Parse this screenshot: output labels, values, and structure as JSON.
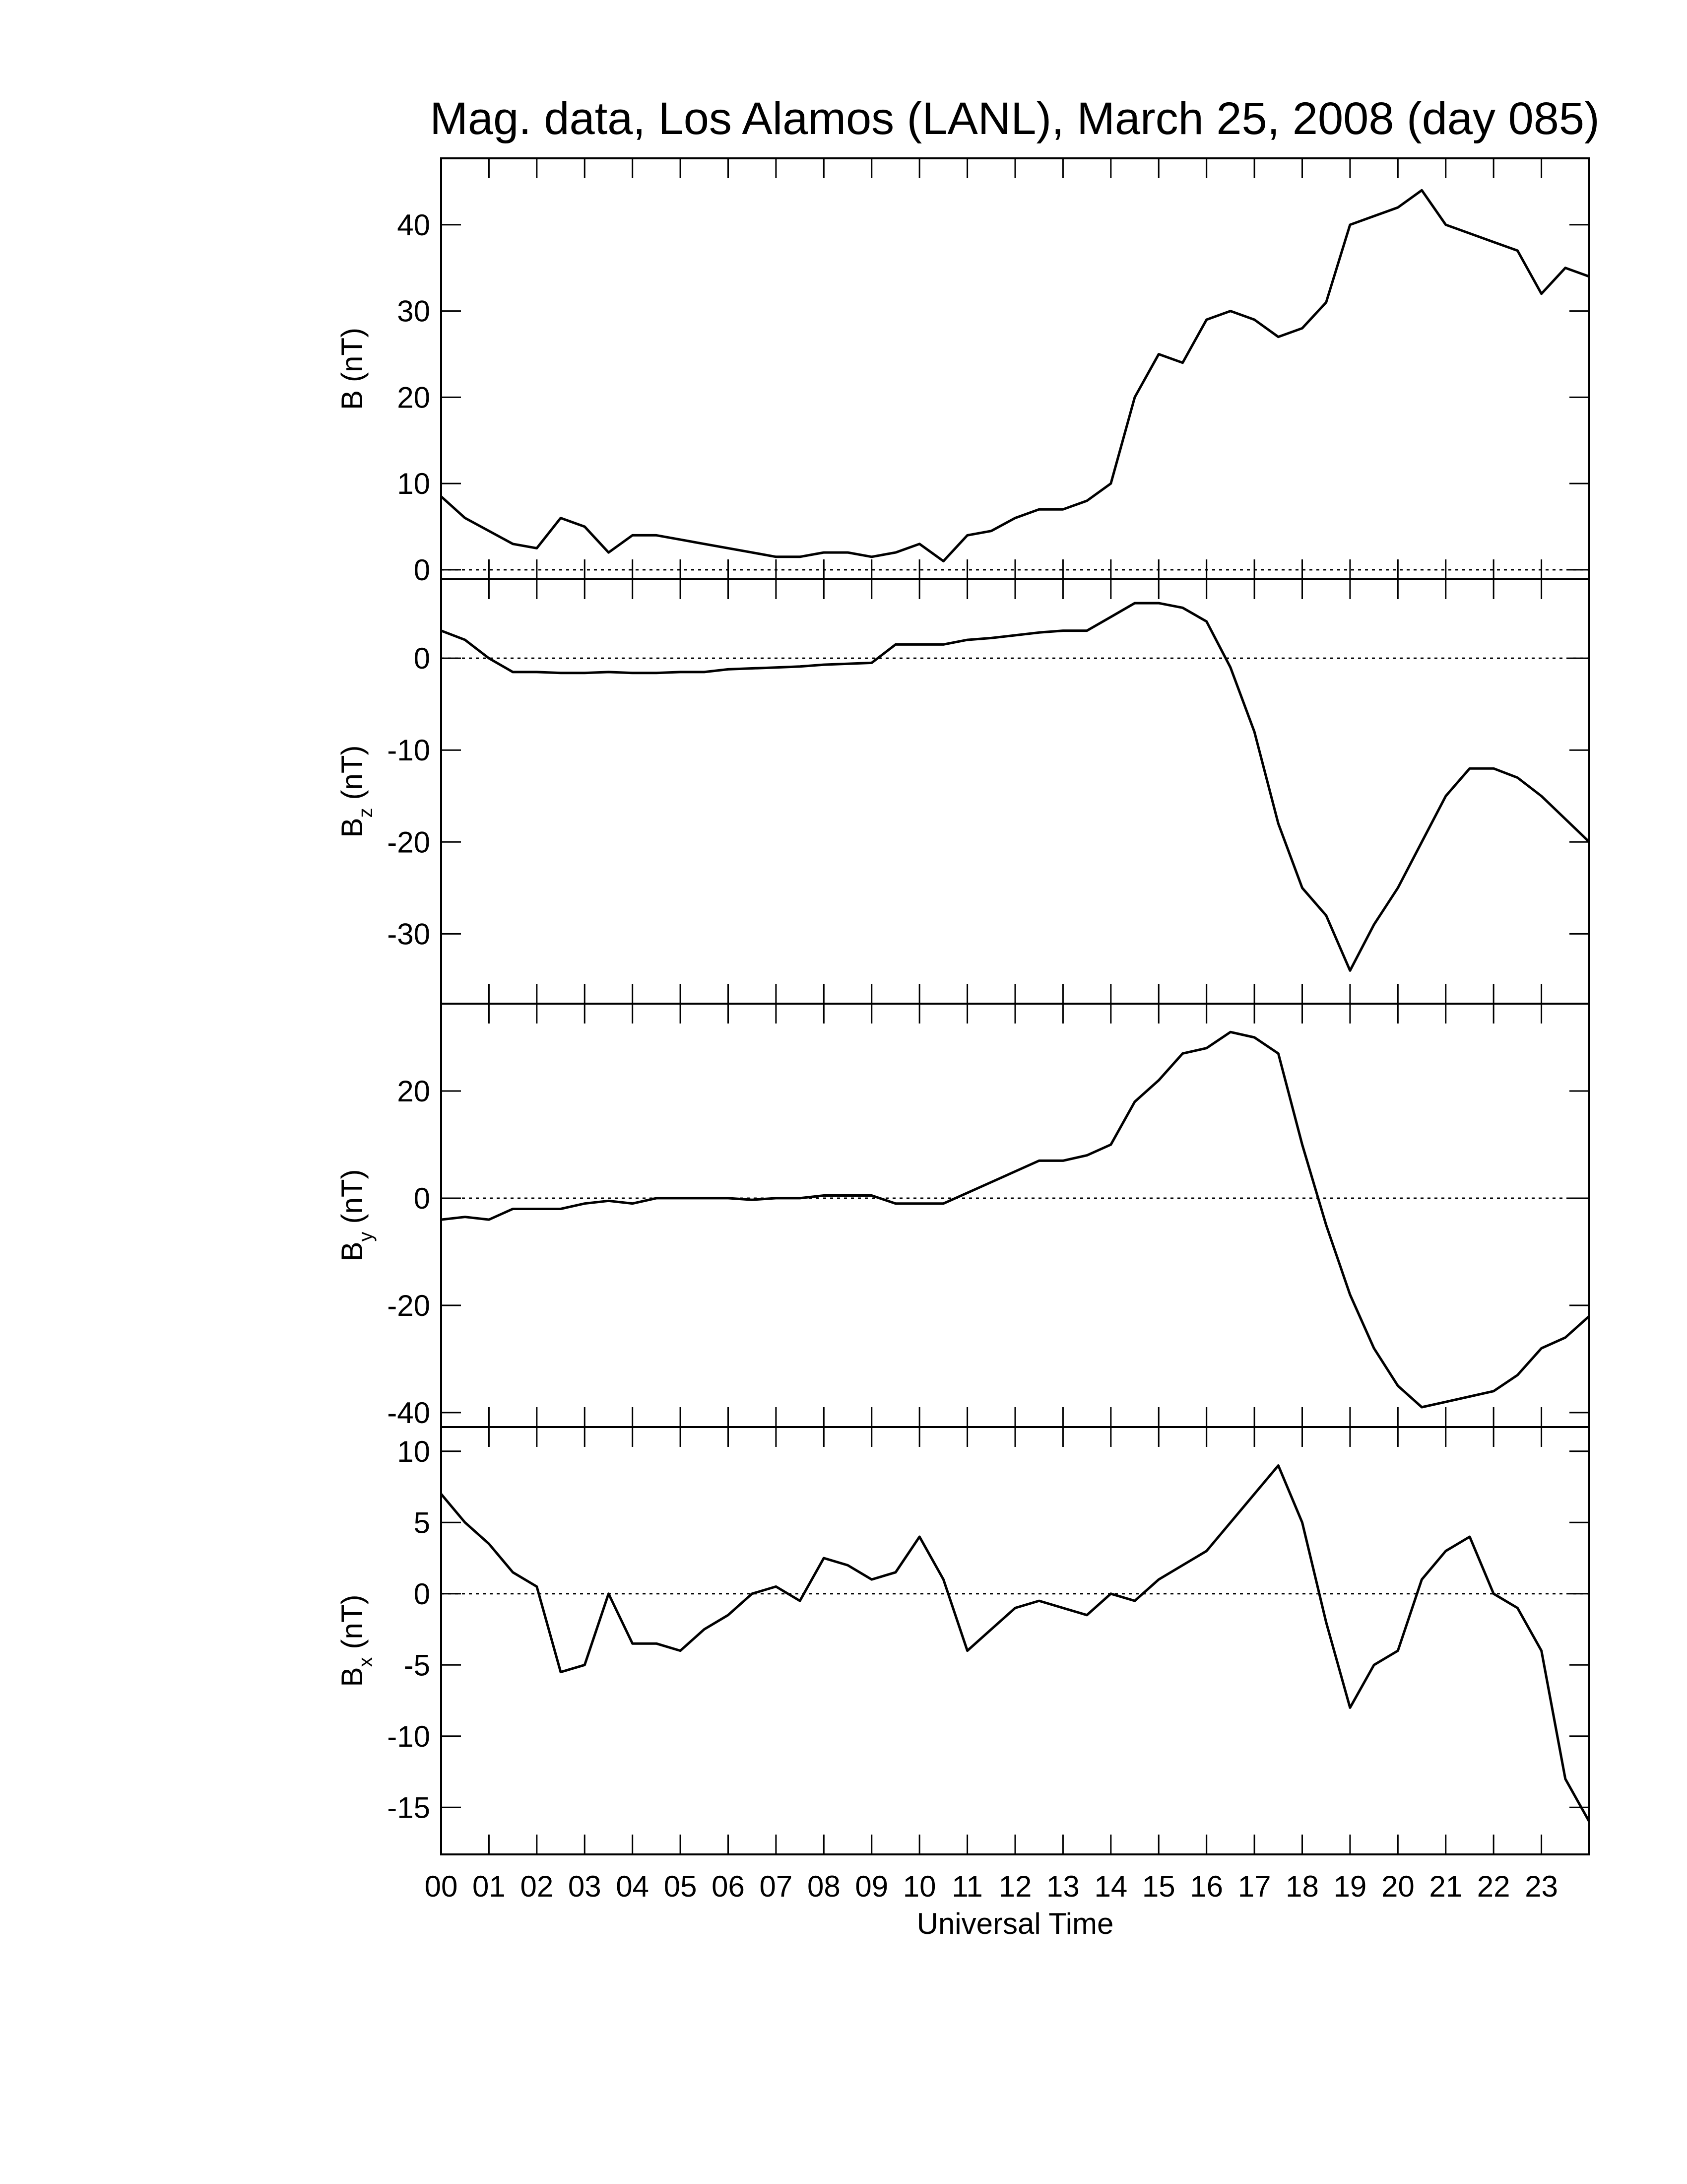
{
  "title": "Mag. data, Los Alamos (LANL), March 25, 2008 (day 085)",
  "chart_data": [
    {
      "type": "line",
      "ylabel": {
        "main": "B",
        "unit": "(nT)"
      },
      "color": "#000000",
      "zero_line": true,
      "xlim": [
        0,
        24
      ],
      "ylim": [
        -1.1,
        47.7
      ],
      "yticks": [
        0,
        10,
        20,
        30,
        40
      ],
      "x": [
        0,
        0.5,
        1,
        1.5,
        2,
        2.5,
        3,
        3.5,
        4,
        4.5,
        5,
        5.5,
        6,
        6.5,
        7,
        7.5,
        8,
        8.5,
        9,
        9.5,
        10,
        10.5,
        11,
        11.5,
        12,
        12.5,
        13,
        13.5,
        14,
        14.5,
        15,
        15.5,
        16,
        16.5,
        17,
        17.5,
        18,
        18.5,
        19,
        19.5,
        20,
        20.5,
        21,
        21.5,
        22,
        22.5,
        23,
        23.5,
        24
      ],
      "values": [
        8.5,
        6,
        4.5,
        3,
        2.5,
        6,
        5,
        2,
        4,
        4,
        3.5,
        3,
        2.5,
        2,
        1.5,
        1.5,
        2,
        2,
        1.5,
        2,
        3,
        1,
        4,
        4.5,
        6,
        7,
        7,
        8,
        10,
        20,
        25,
        24,
        29,
        30,
        29,
        27,
        28,
        31,
        40,
        41,
        42,
        44,
        40,
        39,
        38,
        37,
        32,
        35,
        34
      ]
    },
    {
      "type": "line",
      "ylabel": {
        "main": "B",
        "sub": "z",
        "unit": "(nT)"
      },
      "color": "#000000",
      "zero_line": true,
      "xlim": [
        0,
        24
      ],
      "ylim": [
        -37.6,
        8.6
      ],
      "yticks": [
        0,
        -10,
        -20,
        -30
      ],
      "x": [
        0,
        0.5,
        1,
        1.5,
        2,
        2.5,
        3,
        3.5,
        4,
        4.5,
        5,
        5.5,
        6,
        6.5,
        7,
        7.5,
        8,
        8.5,
        9,
        9.5,
        10,
        10.5,
        11,
        11.5,
        12,
        12.5,
        13,
        13.5,
        14,
        14.5,
        15,
        15.5,
        16,
        16.5,
        17,
        17.5,
        18,
        18.5,
        19,
        19.5,
        20,
        20.5,
        21,
        21.5,
        22,
        22.5,
        23,
        23.5,
        24
      ],
      "values": [
        3,
        2,
        0,
        -1.5,
        -1.5,
        -1.6,
        -1.6,
        -1.5,
        -1.6,
        -1.6,
        -1.5,
        -1.5,
        -1.2,
        -1.1,
        -1,
        -0.9,
        -0.7,
        -0.6,
        -0.5,
        1.5,
        1.5,
        1.5,
        2,
        2.2,
        2.5,
        2.8,
        3,
        3,
        4.5,
        6,
        6,
        5.5,
        4,
        -1,
        -8,
        -18,
        -25,
        -28,
        -34,
        -29,
        -25,
        -20,
        -15,
        -12,
        -12,
        -13,
        -15,
        -17.5,
        -20
      ]
    },
    {
      "type": "line",
      "ylabel": {
        "main": "B",
        "sub": "y",
        "unit": "(nT)"
      },
      "color": "#000000",
      "zero_line": true,
      "xlim": [
        0,
        24
      ],
      "ylim": [
        -42.7,
        36.3
      ],
      "yticks": [
        20,
        0,
        -20,
        -40
      ],
      "x": [
        0,
        0.5,
        1,
        1.5,
        2,
        2.5,
        3,
        3.5,
        4,
        4.5,
        5,
        5.5,
        6,
        6.5,
        7,
        7.5,
        8,
        8.5,
        9,
        9.5,
        10,
        10.5,
        11,
        11.5,
        12,
        12.5,
        13,
        13.5,
        14,
        14.5,
        15,
        15.5,
        16,
        16.5,
        17,
        17.5,
        18,
        18.5,
        19,
        19.5,
        20,
        20.5,
        21,
        21.5,
        22,
        22.5,
        23,
        23.5,
        24
      ],
      "values": [
        -4,
        -3.5,
        -4,
        -2,
        -2,
        -2,
        -1,
        -0.5,
        -1,
        0,
        0,
        0,
        0,
        -0.3,
        0,
        0,
        0.5,
        0.5,
        0.5,
        -1,
        -1,
        -1,
        1,
        3,
        5,
        7,
        7,
        8,
        10,
        18,
        22,
        27,
        28,
        31,
        30,
        27,
        10,
        -5,
        -18,
        -28,
        -35,
        -39,
        -38,
        -37,
        -36,
        -33,
        -28,
        -26,
        -22
      ]
    },
    {
      "type": "line",
      "ylabel": {
        "main": "B",
        "sub": "x",
        "unit": "(nT)"
      },
      "color": "#000000",
      "zero_line": true,
      "xlim": [
        0,
        24
      ],
      "ylim": [
        -18.3,
        11.7
      ],
      "yticks": [
        10,
        5,
        0,
        -5,
        -10,
        -15
      ],
      "xlabel": "Universal Time",
      "xticks": [
        {
          "value": 0,
          "label": "00"
        },
        {
          "value": 1,
          "label": "01"
        },
        {
          "value": 2,
          "label": "02"
        },
        {
          "value": 3,
          "label": "03"
        },
        {
          "value": 4,
          "label": "04"
        },
        {
          "value": 5,
          "label": "05"
        },
        {
          "value": 6,
          "label": "06"
        },
        {
          "value": 7,
          "label": "07"
        },
        {
          "value": 8,
          "label": "08"
        },
        {
          "value": 9,
          "label": "09"
        },
        10,
        11,
        12,
        13,
        14,
        15,
        16,
        17,
        18,
        19,
        20,
        21,
        22,
        23
      ],
      "x": [
        0,
        0.5,
        1,
        1.5,
        2,
        2.5,
        3,
        3.5,
        4,
        4.5,
        5,
        5.5,
        6,
        6.5,
        7,
        7.5,
        8,
        8.5,
        9,
        9.5,
        10,
        10.5,
        11,
        11.5,
        12,
        12.5,
        13,
        13.5,
        14,
        14.5,
        15,
        15.5,
        16,
        16.5,
        17,
        17.5,
        18,
        18.5,
        19,
        19.5,
        20,
        20.5,
        21,
        21.5,
        22,
        22.5,
        23,
        23.5,
        24
      ],
      "values": [
        7,
        5,
        3.5,
        1.5,
        0.5,
        -5.5,
        -5,
        0,
        -3.5,
        -3.5,
        -4,
        -2.5,
        -1.5,
        0,
        0.5,
        -0.5,
        2.5,
        2,
        1,
        1.5,
        4,
        1,
        -4,
        -2.5,
        -1,
        -0.5,
        -1,
        -1.5,
        0,
        -0.5,
        1,
        2,
        3,
        5,
        7,
        9,
        5,
        -2,
        -8,
        -5,
        -4,
        1,
        3,
        4,
        0,
        -1,
        -4,
        -13,
        -16
      ]
    }
  ]
}
